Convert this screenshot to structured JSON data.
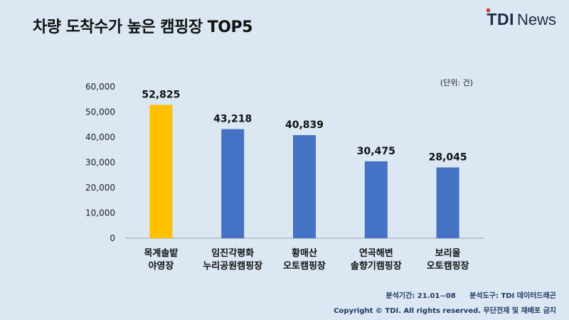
{
  "header": {
    "title": "차량 도착수가 높은 캠핑장 TOP5",
    "logo_tdi": "TDI",
    "logo_news": "News"
  },
  "unit_label": "(단위: 건)",
  "footer": {
    "period": "분석기간: 21.01~08",
    "tool": "분석도구: TDI 데이터드래곤",
    "copyright": "Copyright © TDI. All rights reserved. 무단전재 및 재배포 금지"
  },
  "colors": {
    "highlight": "#ffc000",
    "bar": "#4472c4",
    "logo_accent": "#e03c31"
  },
  "chart_data": {
    "type": "bar",
    "title": "차량 도착수가 높은 캠핑장 TOP5",
    "categories": [
      [
        "목계솔밭",
        "야영장"
      ],
      [
        "임진각평화",
        "누리공원캠핑장"
      ],
      [
        "황매산",
        "오토캠핑장"
      ],
      [
        "연곡해변",
        "솔향기캠핑장"
      ],
      [
        "보리울",
        "오토캠핑장"
      ]
    ],
    "values": [
      52825,
      43218,
      40839,
      30475,
      28045
    ],
    "value_labels": [
      "52,825",
      "43,218",
      "40,839",
      "30,475",
      "28,045"
    ],
    "highlight_index": 0,
    "ylim": [
      0,
      60000
    ],
    "yticks": [
      0,
      10000,
      20000,
      30000,
      40000,
      50000,
      60000
    ],
    "ytick_labels": [
      "0",
      "10,000",
      "20,000",
      "30,000",
      "40,000",
      "50,000",
      "60,000"
    ],
    "grid": false,
    "xlabel": "",
    "ylabel": ""
  }
}
